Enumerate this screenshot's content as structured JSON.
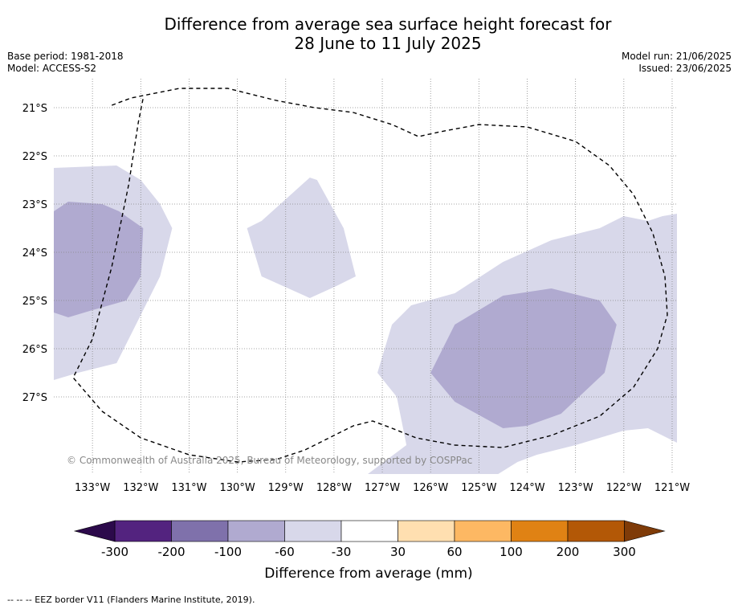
{
  "title": {
    "line1": "Difference from average sea surface height forecast for",
    "line2": "28 June to 11 July 2025"
  },
  "meta_left": {
    "base_period": "Base period: 1981-2018",
    "model": "Model: ACCESS-S2"
  },
  "meta_right": {
    "model_run": "Model run: 21/06/2025",
    "issued": "Issued: 23/06/2025"
  },
  "copyright": "© Commonwealth of Australia 2025, Bureau of Meteorology, supported by COSPPac",
  "footnote": "--  --  -- EEZ border V11 (Flanders Marine Institute, 2019).",
  "colors": {
    "lev_m60": "#d8d8ea",
    "lev_m100": "#b0aad0",
    "eez_line": "#000000",
    "grid": "#888888"
  },
  "chart_data": {
    "type": "heatmap",
    "map": {
      "lon_range": [
        -133.8,
        -120.9
      ],
      "lat_range": [
        -28.6,
        -20.4
      ],
      "lon_ticks": [
        -133,
        -132,
        -131,
        -130,
        -129,
        -128,
        -127,
        -126,
        -125,
        -124,
        -123,
        -122,
        -121
      ],
      "lon_tick_labels": [
        "133°W",
        "132°W",
        "131°W",
        "130°W",
        "129°W",
        "128°W",
        "127°W",
        "126°W",
        "125°W",
        "124°W",
        "123°W",
        "122°W",
        "121°W"
      ],
      "lat_ticks": [
        -21,
        -22,
        -23,
        -24,
        -25,
        -26,
        -27
      ],
      "lat_tick_labels": [
        "21°S",
        "22°S",
        "23°S",
        "24°S",
        "25°S",
        "26°S",
        "27°S"
      ],
      "grid": true
    },
    "regions": [
      {
        "level": "-60 to -30",
        "color": "#d8d8ea",
        "points": [
          [
            -133.8,
            -22.25
          ],
          [
            -132.5,
            -22.2
          ],
          [
            -132.0,
            -22.5
          ],
          [
            -131.6,
            -23.0
          ],
          [
            -131.35,
            -23.5
          ],
          [
            -131.6,
            -24.5
          ],
          [
            -132.1,
            -25.5
          ],
          [
            -132.5,
            -26.3
          ],
          [
            -133.3,
            -26.5
          ],
          [
            -133.8,
            -26.65
          ]
        ]
      },
      {
        "level": "-100 to -60",
        "color": "#b0aad0",
        "points": [
          [
            -133.8,
            -23.15
          ],
          [
            -133.5,
            -22.95
          ],
          [
            -132.8,
            -23.0
          ],
          [
            -132.45,
            -23.15
          ],
          [
            -131.95,
            -23.5
          ],
          [
            -132.0,
            -24.5
          ],
          [
            -132.3,
            -25.0
          ],
          [
            -133.0,
            -25.2
          ],
          [
            -133.5,
            -25.35
          ],
          [
            -133.8,
            -25.25
          ]
        ]
      },
      {
        "level": "-60 to -30",
        "color": "#d8d8ea",
        "points": [
          [
            -129.8,
            -23.5
          ],
          [
            -129.5,
            -23.35
          ],
          [
            -128.5,
            -22.45
          ],
          [
            -128.35,
            -22.5
          ],
          [
            -127.8,
            -23.5
          ],
          [
            -127.55,
            -24.5
          ],
          [
            -127.95,
            -24.7
          ],
          [
            -128.5,
            -24.95
          ],
          [
            -129.5,
            -24.5
          ]
        ]
      },
      {
        "level": "-60 to -30",
        "color": "#d8d8ea",
        "points": [
          [
            -127.3,
            -28.6
          ],
          [
            -126.5,
            -28.0
          ],
          [
            -126.7,
            -27.0
          ],
          [
            -127.1,
            -26.5
          ],
          [
            -126.8,
            -25.5
          ],
          [
            -126.4,
            -25.1
          ],
          [
            -125.5,
            -24.85
          ],
          [
            -124.5,
            -24.2
          ],
          [
            -123.5,
            -23.75
          ],
          [
            -122.5,
            -23.5
          ],
          [
            -122.0,
            -23.25
          ],
          [
            -121.5,
            -23.35
          ],
          [
            -121.2,
            -23.25
          ],
          [
            -120.9,
            -23.2
          ],
          [
            -120.9,
            -26.5
          ],
          [
            -120.9,
            -27.95
          ],
          [
            -121.5,
            -27.65
          ],
          [
            -122.0,
            -27.7
          ],
          [
            -123.0,
            -28.0
          ],
          [
            -123.8,
            -28.2
          ],
          [
            -124.2,
            -28.35
          ],
          [
            -124.6,
            -28.6
          ]
        ]
      },
      {
        "level": "-100 to -60",
        "color": "#b0aad0",
        "points": [
          [
            -126.0,
            -26.5
          ],
          [
            -125.5,
            -25.5
          ],
          [
            -124.5,
            -24.9
          ],
          [
            -123.5,
            -24.75
          ],
          [
            -122.5,
            -25.0
          ],
          [
            -122.15,
            -25.5
          ],
          [
            -122.4,
            -26.5
          ],
          [
            -123.3,
            -27.35
          ],
          [
            -124.0,
            -27.6
          ],
          [
            -124.5,
            -27.65
          ],
          [
            -125.5,
            -27.1
          ]
        ]
      }
    ],
    "eez_border_points": [
      [
        -132.6,
        -20.95
      ],
      [
        -132.2,
        -20.8
      ],
      [
        -131.2,
        -20.6
      ],
      [
        -130.2,
        -20.6
      ],
      [
        -129.2,
        -20.85
      ],
      [
        -128.4,
        -21.0
      ],
      [
        -127.6,
        -21.1
      ],
      [
        -126.8,
        -21.35
      ],
      [
        -126.25,
        -21.6
      ],
      [
        -125.8,
        -21.5
      ],
      [
        -125.0,
        -21.35
      ],
      [
        -124.0,
        -21.4
      ],
      [
        -123.0,
        -21.7
      ],
      [
        -122.3,
        -22.2
      ],
      [
        -121.8,
        -22.8
      ],
      [
        -121.4,
        -23.6
      ],
      [
        -121.15,
        -24.5
      ],
      [
        -121.1,
        -25.3
      ],
      [
        -121.3,
        -26.0
      ],
      [
        -121.8,
        -26.8
      ],
      [
        -122.5,
        -27.4
      ],
      [
        -123.5,
        -27.8
      ],
      [
        -124.5,
        -28.05
      ],
      [
        -125.5,
        -28.0
      ],
      [
        -126.3,
        -27.85
      ],
      [
        -126.8,
        -27.65
      ],
      [
        -127.2,
        -27.5
      ],
      [
        -127.6,
        -27.6
      ],
      [
        -128.0,
        -27.8
      ],
      [
        -128.6,
        -28.1
      ],
      [
        -129.2,
        -28.3
      ],
      [
        -130.0,
        -28.35
      ],
      [
        -131.0,
        -28.2
      ],
      [
        -132.0,
        -27.85
      ],
      [
        -132.8,
        -27.3
      ],
      [
        -133.4,
        -26.6
      ],
      [
        -133.0,
        -25.8
      ],
      [
        -132.6,
        -24.3
      ],
      [
        -132.25,
        -22.6
      ],
      [
        -132.05,
        -21.3
      ],
      [
        -131.95,
        -20.8
      ]
    ],
    "colorbar": {
      "label": "Difference from average (mm)",
      "tick_labels": [
        "-300",
        "-200",
        "-100",
        "-60",
        "-30",
        "30",
        "60",
        "100",
        "200",
        "300"
      ],
      "colors": [
        "#2c0a4b",
        "#53237f",
        "#7f71ab",
        "#b0aad0",
        "#d8d8ea",
        "#ffffff",
        "#ffdfb0",
        "#fdb863",
        "#e08214",
        "#b35806",
        "#7f3b08"
      ]
    }
  }
}
